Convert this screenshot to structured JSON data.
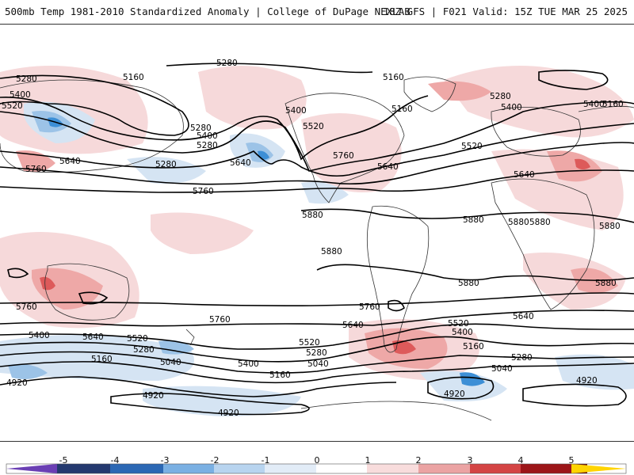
{
  "header": {
    "title": "500mb Temp 1981-2010 Standardized Anomaly | College of DuPage NEXLAB",
    "run_info": "18Z GFS | F021 Valid: 15Z TUE MAR 25 2025"
  },
  "map": {
    "contour_labels": [
      "5280",
      "5160",
      "5280",
      "5400",
      "5520",
      "5160",
      "5160",
      "5280",
      "5400",
      "5400",
      "5520",
      "5760",
      "5640",
      "5520",
      "5640",
      "5400",
      "5280",
      "5400",
      "5280",
      "5160",
      "5280",
      "5640",
      "5760",
      "5640",
      "5760",
      "5880",
      "5880",
      "5880",
      "5880",
      "5880",
      "5880",
      "5880",
      "5880",
      "5760",
      "5760",
      "5760",
      "5640",
      "5640",
      "5520",
      "5400",
      "5640",
      "5400",
      "5520",
      "5280",
      "5160",
      "5040",
      "5520",
      "5280",
      "5040",
      "5400",
      "5160",
      "5160",
      "5040",
      "5280",
      "4920",
      "4920",
      "4920",
      "4920",
      "4920"
    ],
    "anomaly_colors": {
      "warm_light": "#f6d9da",
      "warm_mid": "#eea8a7",
      "warm_dark": "#dd5a5a",
      "cold_light": "#d5e4f3",
      "cold_mid": "#9cc3e7",
      "cold_dark": "#3d8fd6"
    }
  },
  "colorbar": {
    "labels": [
      "-5",
      "-4",
      "-3",
      "-2",
      "-1",
      "0",
      "1",
      "2",
      "3",
      "4",
      "5"
    ],
    "colors": [
      "#6a3fb4",
      "#24396f",
      "#2c68b4",
      "#4f98dc",
      "#a6c9ec",
      "#dbe7f5",
      "#ffffff",
      "#f6d3d3",
      "#e99e9e",
      "#cc4848",
      "#9c1518",
      "#6a0a0a",
      "#ffd400"
    ]
  }
}
